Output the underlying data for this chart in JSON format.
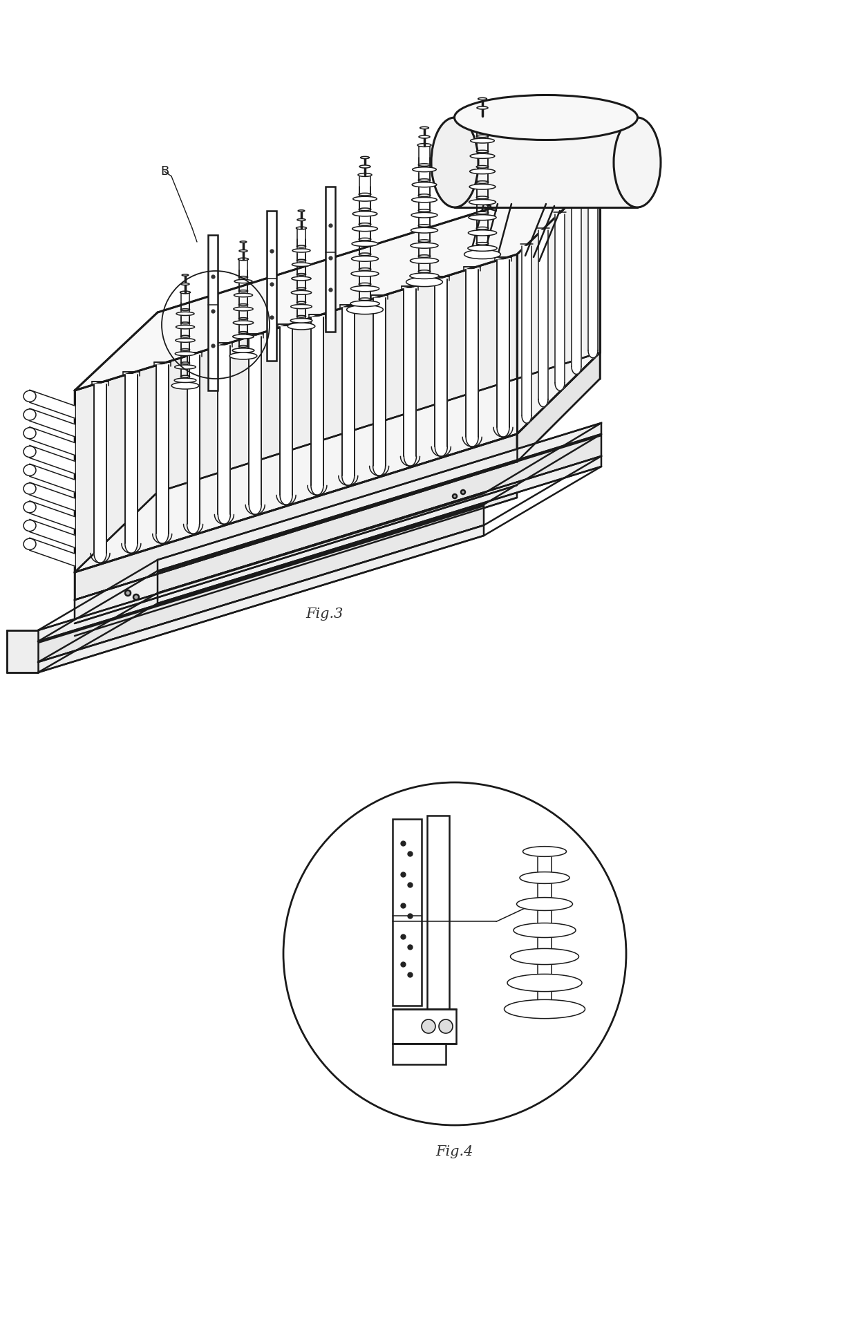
{
  "background_color": "#ffffff",
  "line_color": "#1a1a1a",
  "fig3_label": "Fig.3",
  "fig4_label": "Fig.4",
  "label_B": "B",
  "lw_main": 1.8,
  "lw_thin": 1.1,
  "lw_thick": 2.2
}
